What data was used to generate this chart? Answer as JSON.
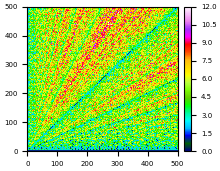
{
  "n": 500,
  "xlim": [
    0,
    500
  ],
  "ylim": [
    0,
    500
  ],
  "xticks": [
    0,
    100,
    200,
    300,
    400,
    500
  ],
  "yticks": [
    0,
    100,
    200,
    300,
    400,
    500
  ],
  "colormap": "gist_ncar",
  "vmin": 0.0,
  "vmax": 12.0,
  "colorbar_ticks": [
    0.0,
    1.5,
    3.0,
    4.5,
    6.0,
    7.5,
    9.0,
    10.5,
    12.0
  ],
  "figsize": [
    2.2,
    1.71
  ],
  "dpi": 100
}
